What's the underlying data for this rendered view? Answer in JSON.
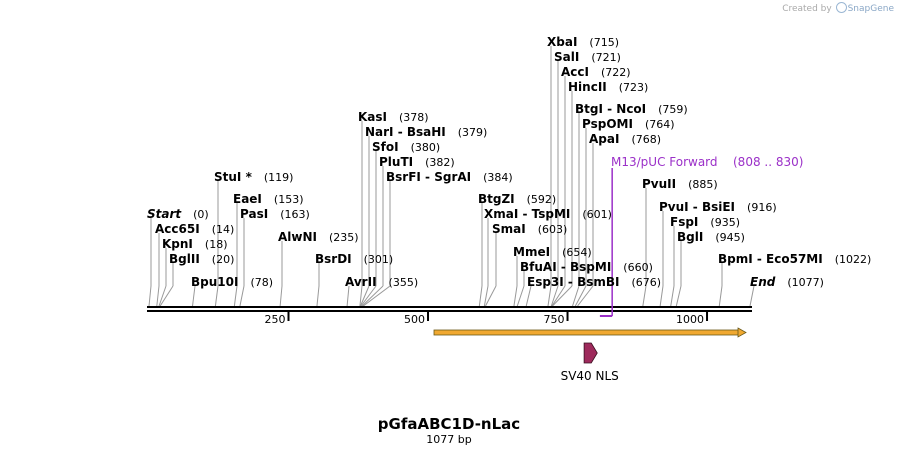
{
  "credit": {
    "prefix": "Created by",
    "brand": "SnapGene"
  },
  "plasmid": {
    "name": "pGfaABC1D-nLac",
    "length_label": "1077 bp",
    "length": 1077
  },
  "axis": {
    "ticks": [
      {
        "value": 250,
        "label": "250"
      },
      {
        "value": 500,
        "label": "500"
      },
      {
        "value": 750,
        "label": "750"
      },
      {
        "value": 1000,
        "label": "1000"
      }
    ]
  },
  "colors": {
    "primer": "#9b30c8",
    "feature_arrow": "#f0a830",
    "nls": "#9e2a5c",
    "line": "#000000",
    "leader": "#999999"
  },
  "features": [
    {
      "name": "SV40 NLS",
      "start": 760,
      "end": 780,
      "strand": "forward"
    }
  ],
  "primer": {
    "name": "M13/pUC Forward",
    "range": "(808 .. 830)",
    "start": 808,
    "end": 830
  },
  "sites": [
    {
      "name": "Start",
      "pos_label": "(0)",
      "pos": 0,
      "italic": true
    },
    {
      "name": "Acc65I",
      "pos_label": "(14)",
      "pos": 14
    },
    {
      "name": "KpnI",
      "pos_label": "(18)",
      "pos": 18
    },
    {
      "name": "BglII",
      "pos_label": "(20)",
      "pos": 20
    },
    {
      "name": "Bpu10I",
      "pos_label": "(78)",
      "pos": 78
    },
    {
      "name": "StuI *",
      "pos_label": "(119)",
      "pos": 119
    },
    {
      "name": "EaeI",
      "pos_label": "(153)",
      "pos": 153
    },
    {
      "name": "PasI",
      "pos_label": "(163)",
      "pos": 163
    },
    {
      "name": "AlwNI",
      "pos_label": "(235)",
      "pos": 235
    },
    {
      "name": "BsrDI",
      "pos_label": "(301)",
      "pos": 301
    },
    {
      "name": "AvrII",
      "pos_label": "(355)",
      "pos": 355
    },
    {
      "name": "KasI",
      "pos_label": "(378)",
      "pos": 378
    },
    {
      "name": "NarI - BsaHI",
      "pos_label": "(379)",
      "pos": 379
    },
    {
      "name": "SfoI",
      "pos_label": "(380)",
      "pos": 380
    },
    {
      "name": "PluTI",
      "pos_label": "(382)",
      "pos": 382
    },
    {
      "name": "BsrFI - SgrAI",
      "pos_label": "(384)",
      "pos": 384
    },
    {
      "name": "BtgZI",
      "pos_label": "(592)",
      "pos": 592
    },
    {
      "name": "XmaI - TspMI",
      "pos_label": "(601)",
      "pos": 601
    },
    {
      "name": "SmaI",
      "pos_label": "(603)",
      "pos": 603
    },
    {
      "name": "MmeI",
      "pos_label": "(654)",
      "pos": 654
    },
    {
      "name": "BfuAI - BspMI",
      "pos_label": "(660)",
      "pos": 660
    },
    {
      "name": "Esp3I - BsmBI",
      "pos_label": "(676)",
      "pos": 676
    },
    {
      "name": "XbaI",
      "pos_label": "(715)",
      "pos": 715
    },
    {
      "name": "SalI",
      "pos_label": "(721)",
      "pos": 721
    },
    {
      "name": "AccI",
      "pos_label": "(722)",
      "pos": 722
    },
    {
      "name": "HincII",
      "pos_label": "(723)",
      "pos": 723
    },
    {
      "name": "BtgI - NcoI",
      "pos_label": "(759)",
      "pos": 759
    },
    {
      "name": "PspOMI",
      "pos_label": "(764)",
      "pos": 764
    },
    {
      "name": "ApaI",
      "pos_label": "(768)",
      "pos": 768
    },
    {
      "name": "PvuII",
      "pos_label": "(885)",
      "pos": 885
    },
    {
      "name": "PvuI - BsiEI",
      "pos_label": "(916)",
      "pos": 916
    },
    {
      "name": "FspI",
      "pos_label": "(935)",
      "pos": 935
    },
    {
      "name": "BglI",
      "pos_label": "(945)",
      "pos": 945
    },
    {
      "name": "BpmI - Eco57MI",
      "pos_label": "(1022)",
      "pos": 1022
    },
    {
      "name": "End",
      "pos_label": "(1077)",
      "pos": 1077,
      "italic": true
    }
  ]
}
